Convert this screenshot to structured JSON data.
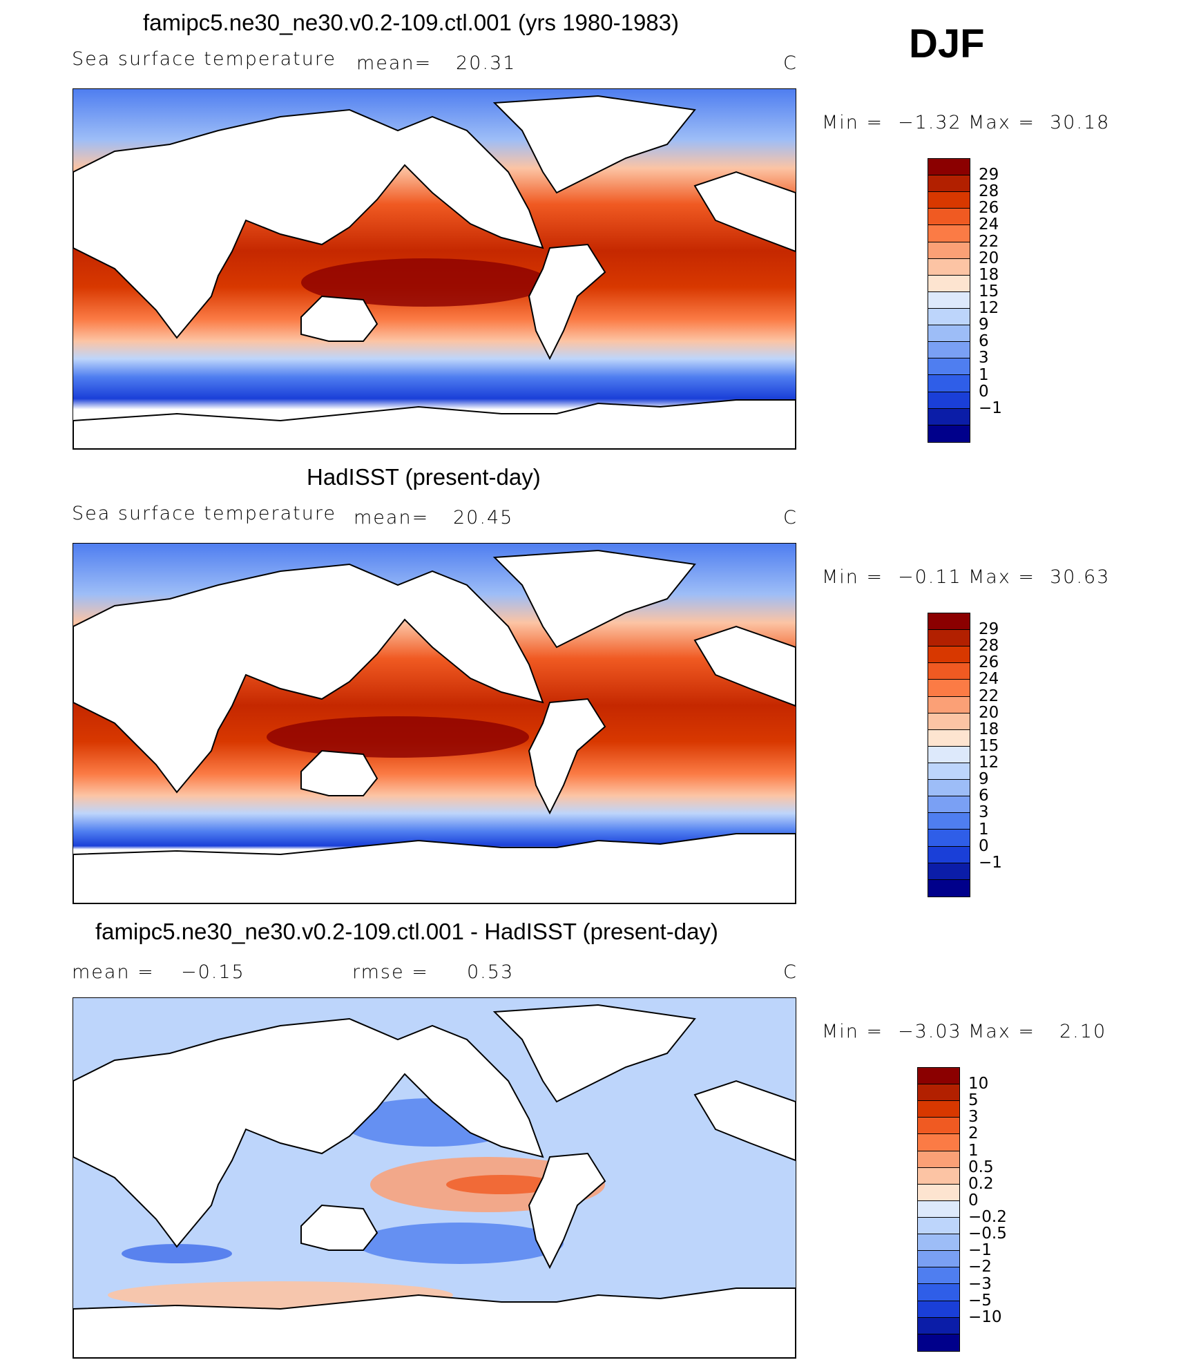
{
  "season": "DJF",
  "panels": [
    {
      "id": "model",
      "title": "famipc5.ne30_ne30.v0.2-109.ctl.001 (yrs 1980-1983)",
      "field_label": "Sea surface temperature",
      "stat1_label": "mean=",
      "stat1_value": "20.31",
      "units": "C",
      "min_label": "Min =",
      "min_value": "−1.32",
      "max_label": "Max =",
      "max_value": "30.18",
      "colorbar": {
        "ticks": [
          "29",
          "28",
          "26",
          "24",
          "22",
          "20",
          "18",
          "15",
          "12",
          "9",
          "6",
          "3",
          "1",
          "0",
          "−1"
        ],
        "colors": [
          "#8b0000",
          "#b22000",
          "#d83800",
          "#f05a22",
          "#fb7b45",
          "#fba076",
          "#fcc4a4",
          "#fde4d0",
          "#dde9fb",
          "#bdd5fb",
          "#9dbdf7",
          "#7aa0f4",
          "#4f7ef0",
          "#2f5ee8",
          "#1a3fd8",
          "#0b1da8",
          "#00008b"
        ]
      }
    },
    {
      "id": "obs",
      "title": "HadISST (present-day)",
      "field_label": "Sea surface temperature",
      "stat1_label": "mean=",
      "stat1_value": "20.45",
      "units": "C",
      "min_label": "Min =",
      "min_value": "−0.11",
      "max_label": "Max =",
      "max_value": "30.63",
      "colorbar": {
        "ticks": [
          "29",
          "28",
          "26",
          "24",
          "22",
          "20",
          "18",
          "15",
          "12",
          "9",
          "6",
          "3",
          "1",
          "0",
          "−1"
        ],
        "colors": [
          "#8b0000",
          "#b22000",
          "#d83800",
          "#f05a22",
          "#fb7b45",
          "#fba076",
          "#fcc4a4",
          "#fde4d0",
          "#dde9fb",
          "#bdd5fb",
          "#9dbdf7",
          "#7aa0f4",
          "#4f7ef0",
          "#2f5ee8",
          "#1a3fd8",
          "#0b1da8",
          "#00008b"
        ]
      }
    },
    {
      "id": "diff",
      "title": "famipc5.ne30_ne30.v0.2-109.ctl.001 - HadISST (present-day)",
      "stat1_label": "mean =",
      "stat1_value": "−0.15",
      "stat2_label": "rmse =",
      "stat2_value": "0.53",
      "units": "C",
      "min_label": "Min =",
      "min_value": "−3.03",
      "max_label": "Max =",
      "max_value": "2.10",
      "colorbar": {
        "ticks": [
          "10",
          "5",
          "3",
          "2",
          "1",
          "0.5",
          "0.2",
          "0",
          "−0.2",
          "−0.5",
          "−1",
          "−2",
          "−3",
          "−5",
          "−10"
        ],
        "colors": [
          "#8b0000",
          "#b22000",
          "#d83800",
          "#f05a22",
          "#fb7b45",
          "#fba076",
          "#fcc4a4",
          "#fde4d0",
          "#dde9fb",
          "#bdd5fb",
          "#9dbdf7",
          "#7aa0f4",
          "#4f7ef0",
          "#2f5ee8",
          "#1a3fd8",
          "#0b1da8",
          "#00008b"
        ]
      }
    }
  ]
}
